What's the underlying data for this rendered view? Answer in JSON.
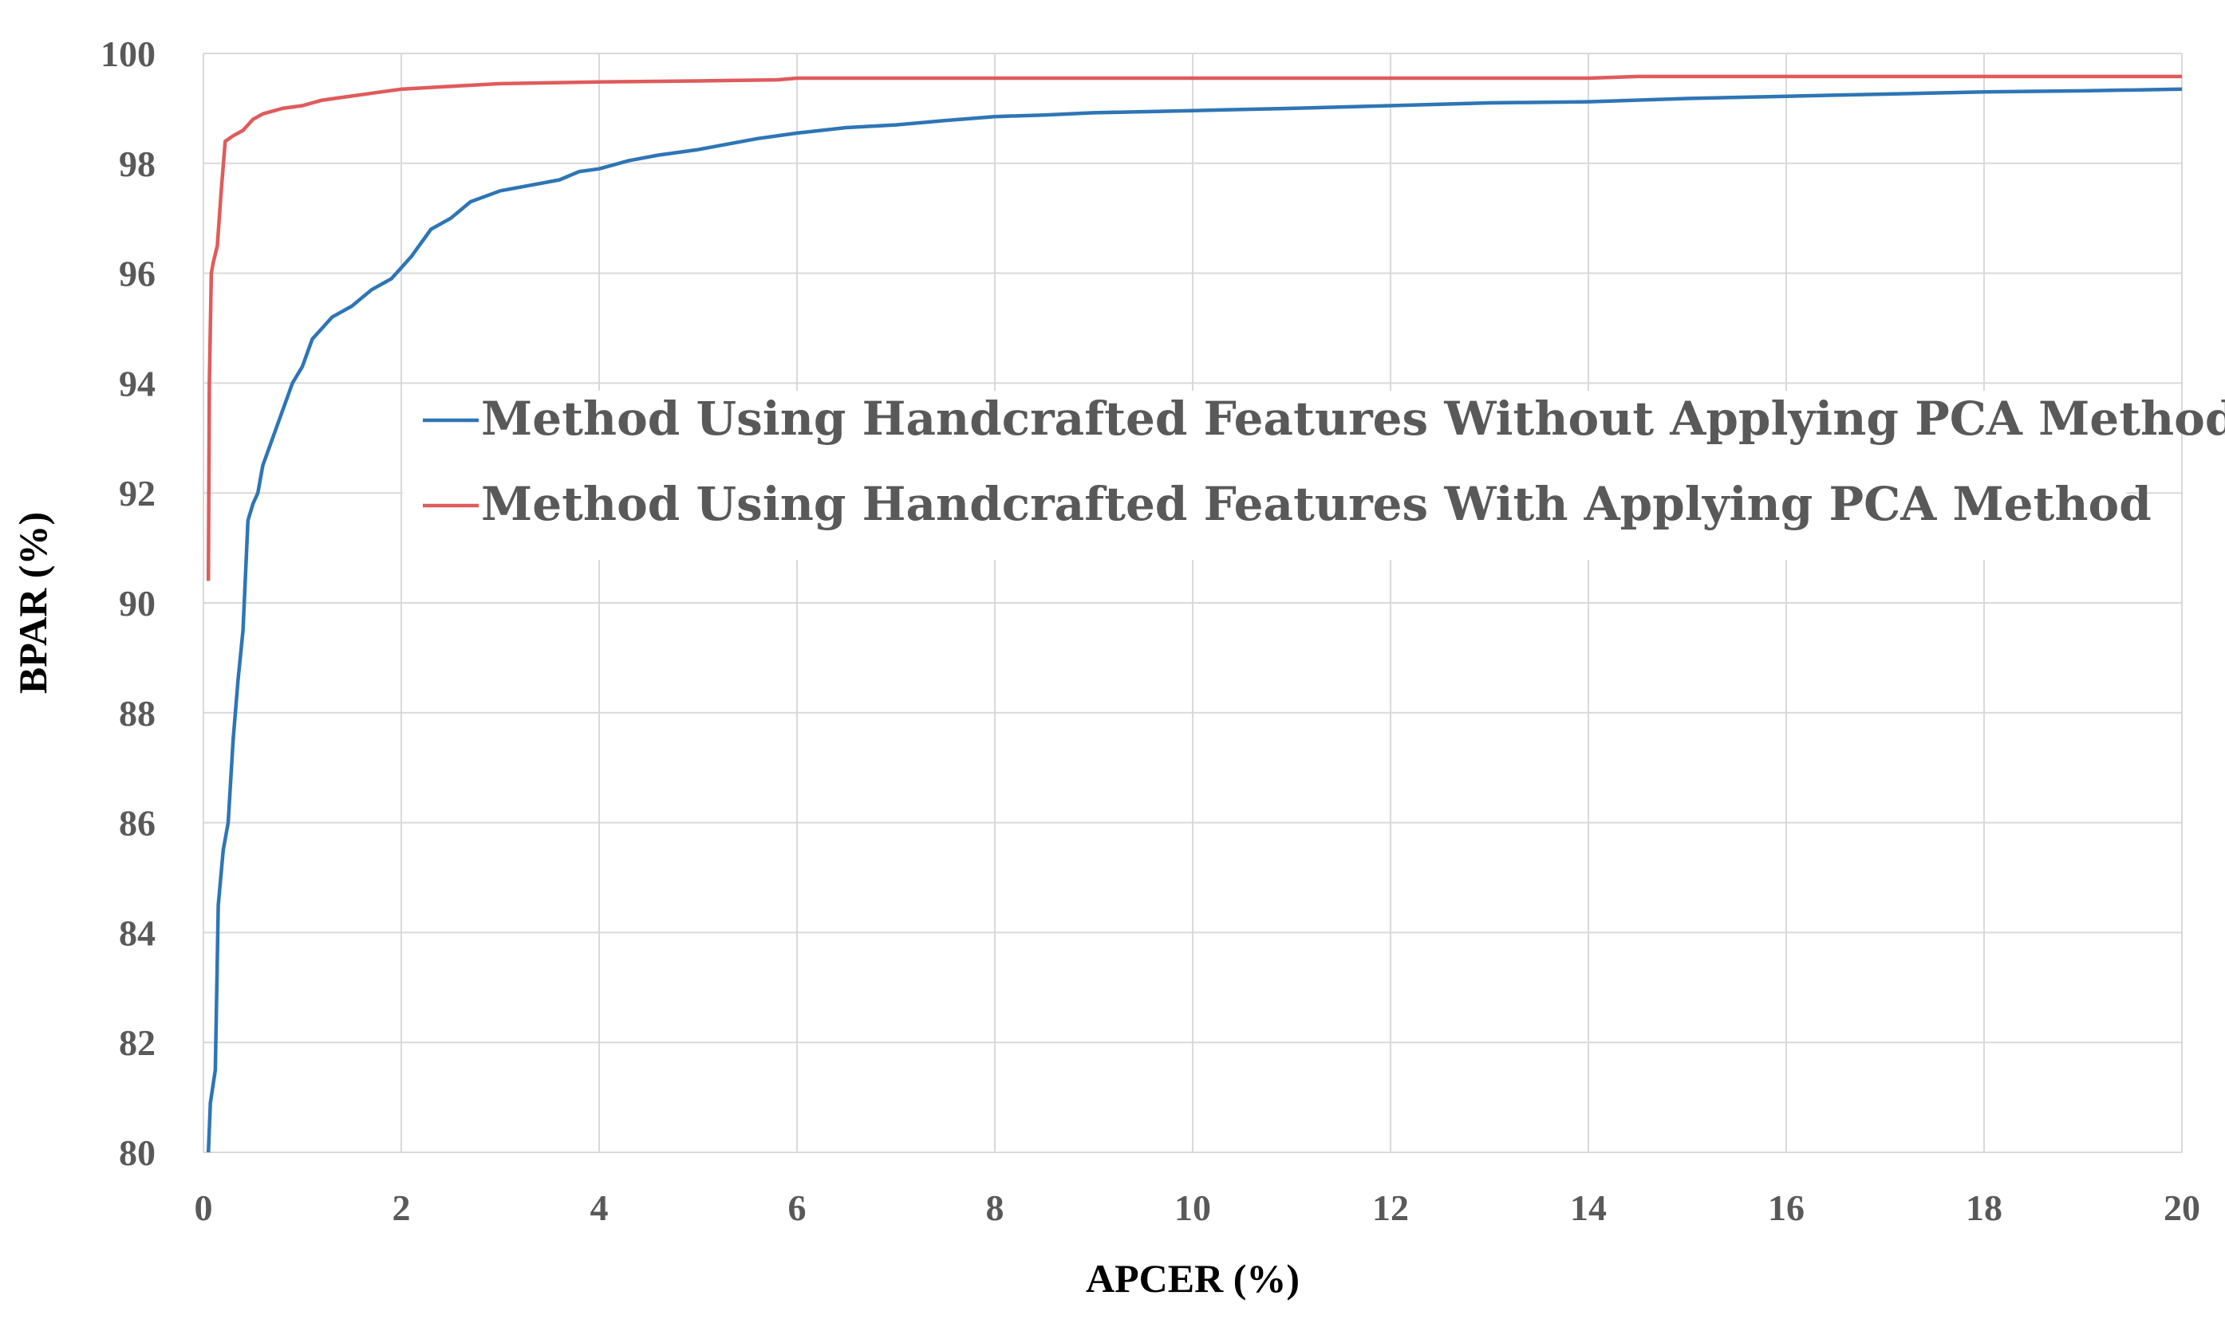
{
  "chart_data": {
    "type": "line",
    "title": "",
    "xlabel": "APCER (%)",
    "ylabel": "BPAR (%)",
    "xlim": [
      0,
      20
    ],
    "ylim": [
      80,
      100
    ],
    "xticks": [
      0,
      2,
      4,
      6,
      8,
      10,
      12,
      14,
      16,
      18,
      20
    ],
    "yticks": [
      80,
      82,
      84,
      86,
      88,
      90,
      92,
      94,
      96,
      98,
      100
    ],
    "grid": true,
    "legend_position": "center",
    "series": [
      {
        "name": "Method Using Handcrafted Features Without Applying PCA Method",
        "color": "#2e75b6",
        "x": [
          0.05,
          0.07,
          0.12,
          0.15,
          0.2,
          0.25,
          0.3,
          0.35,
          0.4,
          0.45,
          0.5,
          0.55,
          0.6,
          0.7,
          0.8,
          0.9,
          1.0,
          1.1,
          1.2,
          1.3,
          1.5,
          1.7,
          1.9,
          2.0,
          2.1,
          2.3,
          2.5,
          2.7,
          3.0,
          3.3,
          3.6,
          3.8,
          4.0,
          4.3,
          4.6,
          5.0,
          5.3,
          5.6,
          6.0,
          6.5,
          7.0,
          7.5,
          8.0,
          8.5,
          9.0,
          10.0,
          11.0,
          12.0,
          13.0,
          14.0,
          15.0,
          16.0,
          17.0,
          18.0,
          19.0,
          20.0
        ],
        "y": [
          80.0,
          80.9,
          81.5,
          84.5,
          85.5,
          86.0,
          87.5,
          88.6,
          89.5,
          91.5,
          91.8,
          92.0,
          92.5,
          93.0,
          93.5,
          94.0,
          94.3,
          94.8,
          95.0,
          95.2,
          95.4,
          95.7,
          95.9,
          96.1,
          96.3,
          96.8,
          97.0,
          97.3,
          97.5,
          97.6,
          97.7,
          97.85,
          97.9,
          98.05,
          98.15,
          98.25,
          98.35,
          98.45,
          98.55,
          98.65,
          98.7,
          98.78,
          98.85,
          98.88,
          98.92,
          98.96,
          99.0,
          99.05,
          99.1,
          99.12,
          99.18,
          99.22,
          99.26,
          99.3,
          99.32,
          99.35
        ]
      },
      {
        "name": "Method Using Handcrafted Features With Applying PCA Method",
        "color": "#e05b5b",
        "x": [
          0.05,
          0.06,
          0.08,
          0.1,
          0.14,
          0.18,
          0.22,
          0.26,
          0.3,
          0.4,
          0.5,
          0.6,
          0.7,
          0.8,
          1.0,
          1.2,
          1.4,
          1.6,
          1.8,
          2.0,
          2.5,
          3.0,
          4.0,
          5.0,
          5.8,
          6.0,
          7.0,
          10.0,
          14.0,
          14.5,
          20.0
        ],
        "y": [
          90.4,
          94.0,
          96.0,
          96.2,
          96.5,
          97.5,
          98.4,
          98.45,
          98.5,
          98.6,
          98.8,
          98.9,
          98.95,
          99.0,
          99.05,
          99.15,
          99.2,
          99.25,
          99.3,
          99.35,
          99.4,
          99.45,
          99.48,
          99.5,
          99.52,
          99.55,
          99.55,
          99.55,
          99.55,
          99.58,
          99.58
        ]
      }
    ]
  }
}
